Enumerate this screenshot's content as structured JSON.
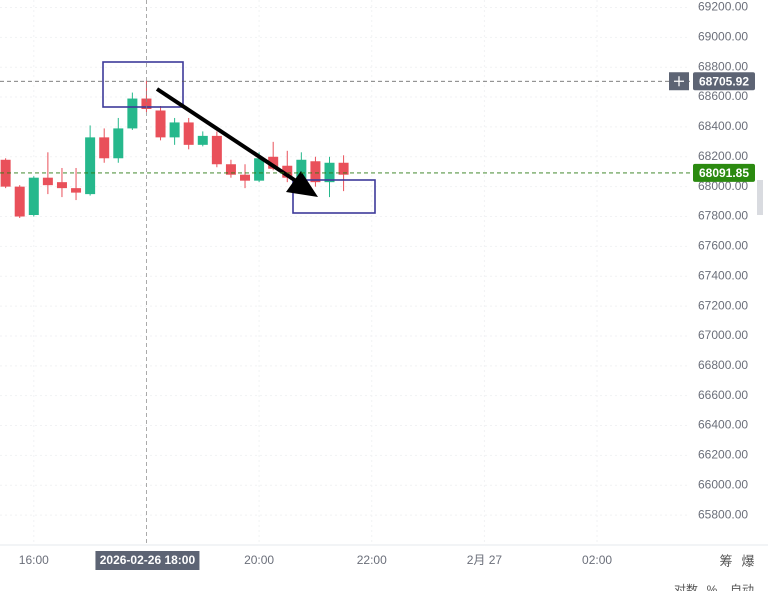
{
  "chart_data": {
    "type": "candlestick",
    "x": [
      "2026-02-26 15:30",
      "2026-02-26 15:45",
      "2026-02-26 16:00",
      "2026-02-26 16:15",
      "2026-02-26 16:30",
      "2026-02-26 16:45",
      "2026-02-26 17:00",
      "2026-02-26 17:15",
      "2026-02-26 17:30",
      "2026-02-26 17:45",
      "2026-02-26 18:00",
      "2026-02-26 18:15",
      "2026-02-26 18:30",
      "2026-02-26 18:45",
      "2026-02-26 19:00",
      "2026-02-26 19:15",
      "2026-02-26 19:30",
      "2026-02-26 19:45",
      "2026-02-26 20:00",
      "2026-02-26 20:15",
      "2026-02-26 20:30",
      "2026-02-26 20:45",
      "2026-02-26 21:00",
      "2026-02-26 21:15",
      "2026-02-26 21:30"
    ],
    "open": [
      68180,
      68000,
      67810,
      68060,
      68030,
      67990,
      67950,
      68330,
      68190,
      68390,
      68590,
      68510,
      68330,
      68430,
      68280,
      68340,
      68150,
      68080,
      68040,
      68200,
      68140,
      68030,
      68170,
      68030,
      68160
    ],
    "high": [
      68190,
      68010,
      68070,
      68230,
      68125,
      68125,
      68410,
      68390,
      68460,
      68630,
      68710,
      68540,
      68460,
      68460,
      68370,
      68370,
      68180,
      68150,
      68230,
      68300,
      68240,
      68230,
      68200,
      68200,
      68210
    ],
    "low": [
      67990,
      67790,
      67800,
      67950,
      67930,
      67910,
      67940,
      68160,
      68160,
      68380,
      68500,
      68310,
      68280,
      68250,
      68270,
      68130,
      68060,
      67990,
      68030,
      68110,
      68030,
      68010,
      68000,
      67930,
      67970
    ],
    "close": [
      68000,
      67800,
      68060,
      68010,
      67990,
      67960,
      68330,
      68190,
      68390,
      68590,
      68520,
      68330,
      68430,
      68280,
      68340,
      68150,
      68080,
      68040,
      68190,
      68120,
      68060,
      68180,
      68030,
      68160,
      68080
    ],
    "up_color": "#26b88c",
    "down_color": "#e9505a",
    "xlim": [
      "2026-02-26 15:24",
      "2026-02-27 03:39"
    ],
    "xticks": [
      {
        "value": "2026-02-26 16:00",
        "label": "16:00"
      },
      {
        "value": "2026-02-26 20:00",
        "label": "20:00"
      },
      {
        "value": "2026-02-26 22:00",
        "label": "22:00"
      },
      {
        "value": "2026-02-27 00:00",
        "label": "2月 27"
      },
      {
        "value": "2026-02-27 02:00",
        "label": "02:00"
      }
    ],
    "ylim": [
      65600,
      69250
    ],
    "yticks": [
      {
        "value": 65800,
        "label": "65800.00"
      },
      {
        "value": 66000,
        "label": "66000.00"
      },
      {
        "value": 66200,
        "label": "66200.00"
      },
      {
        "value": 66400,
        "label": "66400.00"
      },
      {
        "value": 66600,
        "label": "66600.00"
      },
      {
        "value": 66800,
        "label": "66800.00"
      },
      {
        "value": 67000,
        "label": "67000.00"
      },
      {
        "value": 67200,
        "label": "67200.00"
      },
      {
        "value": 67400,
        "label": "67400.00"
      },
      {
        "value": 67600,
        "label": "67600.00"
      },
      {
        "value": 67800,
        "label": "67800.00"
      },
      {
        "value": 68000,
        "label": "68000.00"
      },
      {
        "value": 68200,
        "label": "68200.00"
      },
      {
        "value": 68400,
        "label": "68400.00"
      },
      {
        "value": 68600,
        "label": "68600.00"
      },
      {
        "value": 68800,
        "label": "68800.00"
      },
      {
        "value": 69000,
        "label": "69000.00"
      },
      {
        "value": 69200,
        "label": "69200.00"
      }
    ],
    "grid": true,
    "crosshair": {
      "price": 68705.92,
      "time": "2026-02-26 18:00"
    },
    "last_price": 68091.85,
    "corner_labels": [
      "筹",
      "爆"
    ],
    "footer_labels": [
      "对数",
      "%",
      "自动"
    ]
  }
}
